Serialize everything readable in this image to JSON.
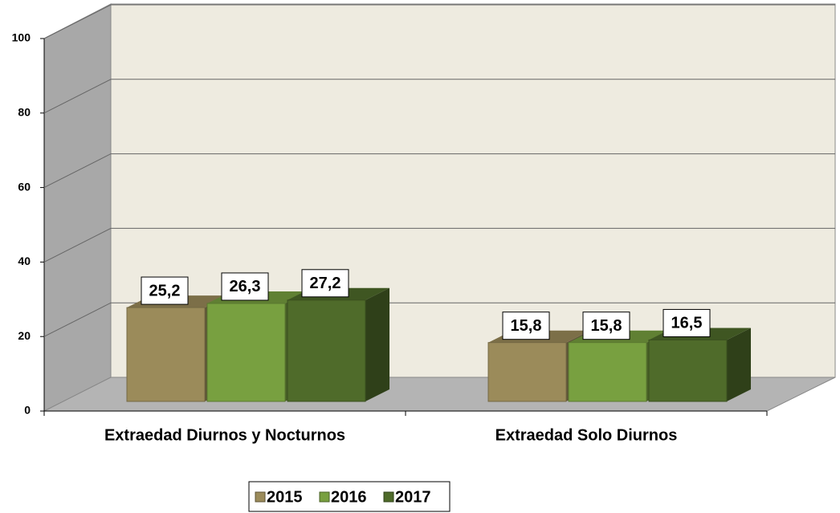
{
  "chart_data": {
    "type": "bar3d",
    "categories": [
      "Extraedad Diurnos y Nocturnos",
      "Extraedad Solo Diurnos"
    ],
    "series": [
      {
        "name": "2015",
        "color": "#9b8b5a",
        "values": [
          25.2,
          15.8
        ],
        "value_labels": [
          "25,2",
          "15,8"
        ]
      },
      {
        "name": "2016",
        "color": "#78a040",
        "values": [
          26.3,
          15.8
        ],
        "value_labels": [
          "26,3",
          "15,8"
        ]
      },
      {
        "name": "2017",
        "color": "#4f6b2a",
        "values": [
          27.2,
          16.5
        ],
        "value_labels": [
          "27,2",
          "16,5"
        ]
      }
    ],
    "ylim": [
      0,
      100
    ],
    "yticks": [
      0,
      20,
      40,
      60,
      80,
      100
    ],
    "grid": true,
    "legend": "bottom"
  }
}
